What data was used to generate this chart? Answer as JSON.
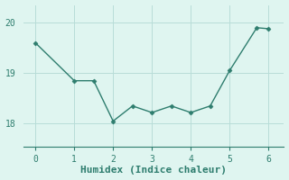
{
  "x": [
    0,
    1,
    1.5,
    2,
    2.5,
    3,
    3.5,
    4,
    4.5,
    5,
    5.7,
    6
  ],
  "y": [
    19.6,
    18.85,
    18.85,
    18.05,
    18.35,
    18.22,
    18.35,
    18.22,
    18.35,
    19.05,
    19.9,
    19.88
  ],
  "line_color": "#2e7d6e",
  "marker": "D",
  "marker_size": 2.5,
  "bg_color": "#dff5f0",
  "grid_color": "#b8ddd8",
  "xlabel": "Humidex (Indice chaleur)",
  "xlim": [
    -0.3,
    6.4
  ],
  "ylim": [
    17.55,
    20.35
  ],
  "yticks": [
    18,
    19,
    20
  ],
  "xticks": [
    0,
    1,
    2,
    3,
    4,
    5,
    6
  ],
  "font_family": "monospace",
  "xlabel_fontsize": 8,
  "tick_fontsize": 7
}
